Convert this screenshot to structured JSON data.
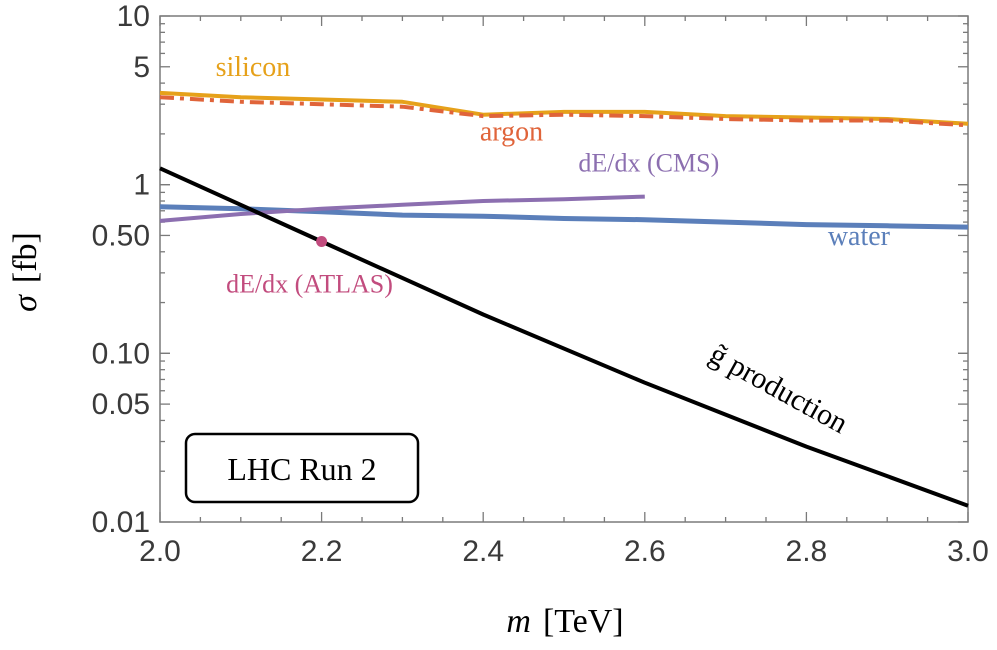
{
  "chart_data": {
    "type": "line",
    "title": "",
    "xlabel": {
      "var": "m",
      "unit": "[TeV]"
    },
    "ylabel": {
      "var": "σ",
      "unit": "[fb]"
    },
    "xlim": [
      2.0,
      3.0
    ],
    "ylim": [
      0.01,
      10
    ],
    "yscale": "log",
    "x_ticks": [
      {
        "v": 2.0,
        "label": "2.0"
      },
      {
        "v": 2.2,
        "label": "2.2"
      },
      {
        "v": 2.4,
        "label": "2.4"
      },
      {
        "v": 2.6,
        "label": "2.6"
      },
      {
        "v": 2.8,
        "label": "2.8"
      },
      {
        "v": 3.0,
        "label": "3.0"
      }
    ],
    "y_ticks": [
      {
        "v": 10,
        "label": "10"
      },
      {
        "v": 5,
        "label": "5"
      },
      {
        "v": 1,
        "label": "1"
      },
      {
        "v": 0.5,
        "label": "0.50"
      },
      {
        "v": 0.1,
        "label": "0.10"
      },
      {
        "v": 0.05,
        "label": "0.05"
      },
      {
        "v": 0.01,
        "label": "0.01"
      }
    ],
    "series": [
      {
        "name": "silicon",
        "color": "#e6a11a",
        "style": "solid",
        "width": 4,
        "x": [
          2.0,
          2.1,
          2.2,
          2.3,
          2.4,
          2.5,
          2.6,
          2.7,
          2.8,
          2.9,
          3.0
        ],
        "y": [
          3.5,
          3.3,
          3.2,
          3.1,
          2.6,
          2.7,
          2.7,
          2.55,
          2.5,
          2.45,
          2.3
        ]
      },
      {
        "name": "argon",
        "color": "#e0643a",
        "style": "dashdot",
        "width": 4,
        "x": [
          2.0,
          2.1,
          2.2,
          2.3,
          2.4,
          2.5,
          2.6,
          2.7,
          2.8,
          2.9,
          3.0
        ],
        "y": [
          3.3,
          3.1,
          3.0,
          2.9,
          2.55,
          2.6,
          2.55,
          2.45,
          2.4,
          2.4,
          2.25
        ]
      },
      {
        "name": "water",
        "color": "#5b7fba",
        "style": "solid",
        "width": 5,
        "x": [
          2.0,
          2.1,
          2.2,
          2.3,
          2.4,
          2.5,
          2.6,
          2.7,
          2.8,
          2.9,
          3.0
        ],
        "y": [
          0.74,
          0.72,
          0.69,
          0.66,
          0.65,
          0.63,
          0.62,
          0.6,
          0.58,
          0.57,
          0.56
        ]
      },
      {
        "name": "dE/dx (CMS)",
        "color": "#8c6fb0",
        "style": "solid",
        "width": 4,
        "x": [
          2.0,
          2.1,
          2.2,
          2.3,
          2.4,
          2.5,
          2.6
        ],
        "y": [
          0.61,
          0.67,
          0.72,
          0.76,
          0.8,
          0.82,
          0.85
        ]
      },
      {
        "name": "g̃ production",
        "color": "#000000",
        "style": "solid",
        "width": 4,
        "x": [
          2.0,
          2.2,
          2.4,
          2.6,
          2.8,
          3.0
        ],
        "y": [
          1.25,
          0.46,
          0.17,
          0.067,
          0.028,
          0.0125
        ]
      }
    ],
    "points": [
      {
        "name": "dE/dx (ATLAS)",
        "color": "#c24c7e",
        "x": 2.2,
        "y": 0.46
      }
    ],
    "annotations": [
      {
        "text": "silicon",
        "color": "#e6a11a",
        "x": 2.115,
        "y": 4.4,
        "size": 28
      },
      {
        "text": "argon",
        "color": "#e0643a",
        "x": 2.435,
        "y": 1.83,
        "size": 28
      },
      {
        "text": "dE/dx (CMS)",
        "color": "#8c6fb0",
        "x": 2.605,
        "y": 1.2,
        "size": 26
      },
      {
        "text": "water",
        "color": "#5b7fba",
        "x": 2.865,
        "y": 0.44,
        "size": 28
      },
      {
        "text": "dE/dx (ATLAS)",
        "color": "#c24c7e",
        "x": 2.185,
        "y": 0.23,
        "size": 26
      },
      {
        "text": "g̃ production",
        "color": "#000000",
        "x": 2.76,
        "y": 0.055,
        "size": 30,
        "rotate": 29
      }
    ],
    "legend_box": {
      "text": "LHC Run 2"
    }
  }
}
